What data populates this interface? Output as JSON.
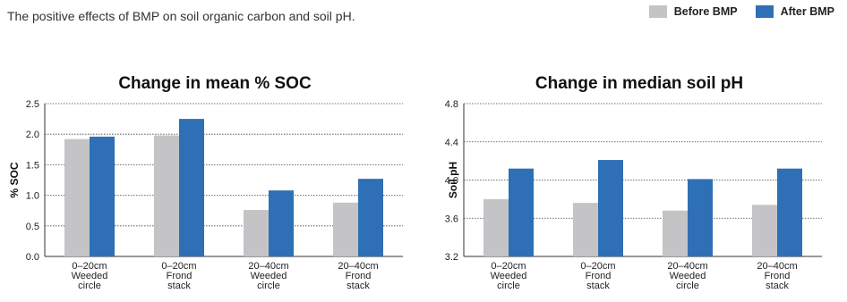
{
  "caption": "The positive effects of BMP on soil organic carbon and soil pH.",
  "legend": [
    {
      "label": "Before BMP",
      "color": "#c4c4c6"
    },
    {
      "label": "After BMP",
      "color": "#2f6fb5"
    }
  ],
  "chart_data": [
    {
      "type": "bar",
      "title": "Change in mean % SOC",
      "ylabel": "% SOC",
      "xlabel": "",
      "ylim": [
        0,
        2.5
      ],
      "yticks": [
        "0.0",
        "0.5",
        "1.0",
        "1.5",
        "2.0",
        "2.5"
      ],
      "categories": [
        [
          "0–20cm",
          "Weeded",
          "circle"
        ],
        [
          "0–20cm",
          "Frond",
          "stack"
        ],
        [
          "20–40cm",
          "Weeded",
          "circle"
        ],
        [
          "20–40cm",
          "Frond",
          "stack"
        ]
      ],
      "series": [
        {
          "name": "Before BMP",
          "values": [
            1.92,
            1.98,
            0.76,
            0.88
          ]
        },
        {
          "name": "After BMP",
          "values": [
            1.96,
            2.25,
            1.08,
            1.27
          ]
        }
      ],
      "grid": true
    },
    {
      "type": "bar",
      "title": "Change in median soil pH",
      "ylabel": "Soil pH",
      "xlabel": "",
      "ylim": [
        3.2,
        4.8
      ],
      "yticks": [
        "3.2",
        "3.6",
        "4.0",
        "4.4",
        "4.8"
      ],
      "categories": [
        [
          "0–20cm",
          "Weeded",
          "circle"
        ],
        [
          "0–20cm",
          "Frond",
          "stack"
        ],
        [
          "20–40cm",
          "Weeded",
          "circle"
        ],
        [
          "20–40cm",
          "Frond",
          "stack"
        ]
      ],
      "series": [
        {
          "name": "Before BMP",
          "values": [
            3.8,
            3.76,
            3.68,
            3.74
          ]
        },
        {
          "name": "After BMP",
          "values": [
            4.12,
            4.21,
            4.01,
            4.12
          ]
        }
      ],
      "grid": true
    }
  ]
}
